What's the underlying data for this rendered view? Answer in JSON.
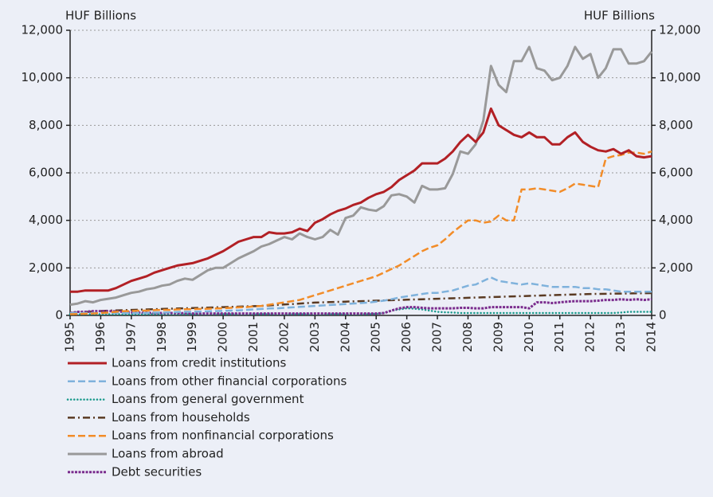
{
  "chart_data": {
    "type": "line",
    "ylabel": "HUF Billions",
    "y2label": "HUF Billions",
    "x": [
      1995,
      1995.25,
      1995.5,
      1995.75,
      1996,
      1996.25,
      1996.5,
      1996.75,
      1997,
      1997.25,
      1997.5,
      1997.75,
      1998,
      1998.25,
      1998.5,
      1998.75,
      1999,
      1999.25,
      1999.5,
      1999.75,
      2000,
      2000.25,
      2000.5,
      2000.75,
      2001,
      2001.25,
      2001.5,
      2001.75,
      2002,
      2002.25,
      2002.5,
      2002.75,
      2003,
      2003.25,
      2003.5,
      2003.75,
      2004,
      2004.25,
      2004.5,
      2004.75,
      2005,
      2005.25,
      2005.5,
      2005.75,
      2006,
      2006.25,
      2006.5,
      2006.75,
      2007,
      2007.25,
      2007.5,
      2007.75,
      2008,
      2008.25,
      2008.5,
      2008.75,
      2009,
      2009.25,
      2009.5,
      2009.75,
      2010,
      2010.25,
      2010.5,
      2010.75,
      2011,
      2011.25,
      2011.5,
      2011.75,
      2012,
      2012.25,
      2012.5,
      2012.75,
      2013,
      2013.25,
      2013.5,
      2013.75,
      2014
    ],
    "xlim": [
      1995,
      2014
    ],
    "xticks": [
      1995,
      1996,
      1997,
      1998,
      1999,
      2000,
      2001,
      2002,
      2003,
      2004,
      2005,
      2006,
      2007,
      2008,
      2009,
      2010,
      2011,
      2012,
      2013,
      2014
    ],
    "ylim": [
      0,
      12000
    ],
    "yticks": [
      0,
      {
        "value": 2000,
        "label": "2,000"
      },
      {
        "value": 4000,
        "label": "4,000"
      },
      {
        "value": 6000,
        "label": "6,000"
      },
      {
        "value": 8000,
        "label": "8,000"
      },
      {
        "value": 10000,
        "label": "10,000"
      },
      {
        "value": 12000,
        "label": "12,000"
      }
    ],
    "y2lim": [
      0,
      12000
    ],
    "y2ticks": [
      0,
      {
        "value": 2000,
        "label": "2,000"
      },
      {
        "value": 4000,
        "label": "4,000"
      },
      {
        "value": 6000,
        "label": "6,000"
      },
      {
        "value": 8000,
        "label": "8,000"
      },
      {
        "value": 10000,
        "label": "10,000"
      },
      {
        "value": 12000,
        "label": "12,000"
      }
    ],
    "grid": true,
    "legend": "bottom",
    "series": [
      {
        "name": "Loans from credit institutions",
        "color": "#b22025",
        "style": "solid",
        "values": [
          1000,
          1000,
          1050,
          1050,
          1050,
          1050,
          1150,
          1300,
          1450,
          1550,
          1650,
          1800,
          1900,
          2000,
          2100,
          2150,
          2200,
          2300,
          2400,
          2550,
          2700,
          2900,
          3100,
          3200,
          3300,
          3300,
          3500,
          3450,
          3450,
          3500,
          3650,
          3550,
          3900,
          4050,
          4250,
          4400,
          4500,
          4650,
          4750,
          4950,
          5100,
          5200,
          5400,
          5700,
          5900,
          6100,
          6400,
          6400,
          6400,
          6600,
          6900,
          7300,
          7600,
          7300,
          7700,
          8700,
          8000,
          7800,
          7600,
          7500,
          7700,
          7500,
          7500,
          7200,
          7200,
          7500,
          7700,
          7300,
          7100,
          6950,
          6900,
          7000,
          6800,
          6950,
          6700,
          6650,
          6700
        ]
      },
      {
        "name": "Loans from other financial corporations",
        "color": "#7fb2dc",
        "style": "dashed",
        "values": [
          100,
          100,
          100,
          100,
          100,
          100,
          100,
          100,
          100,
          100,
          100,
          120,
          120,
          130,
          140,
          150,
          150,
          160,
          170,
          180,
          190,
          200,
          210,
          230,
          250,
          270,
          290,
          300,
          320,
          340,
          360,
          380,
          400,
          420,
          440,
          460,
          480,
          500,
          520,
          540,
          580,
          620,
          680,
          750,
          800,
          850,
          900,
          950,
          950,
          1000,
          1050,
          1150,
          1250,
          1300,
          1450,
          1600,
          1450,
          1400,
          1350,
          1300,
          1350,
          1300,
          1250,
          1200,
          1200,
          1200,
          1200,
          1150,
          1150,
          1100,
          1100,
          1050,
          1000,
          1000,
          1000,
          1000,
          1000
        ]
      },
      {
        "name": "Loans from general government",
        "color": "#1a9a8c",
        "style": "dotted",
        "values": [
          50,
          50,
          50,
          50,
          50,
          50,
          50,
          50,
          50,
          50,
          50,
          50,
          50,
          50,
          50,
          50,
          50,
          50,
          50,
          50,
          50,
          50,
          50,
          50,
          50,
          50,
          50,
          50,
          50,
          50,
          50,
          50,
          50,
          50,
          50,
          50,
          50,
          50,
          50,
          50,
          60,
          100,
          200,
          250,
          300,
          280,
          250,
          200,
          150,
          130,
          120,
          100,
          100,
          100,
          100,
          100,
          100,
          100,
          100,
          100,
          100,
          100,
          100,
          100,
          100,
          100,
          100,
          100,
          100,
          100,
          100,
          100,
          120,
          150,
          150,
          150,
          150
        ]
      },
      {
        "name": "Loans from households",
        "color": "#5a3a22",
        "style": "dashdot",
        "values": [
          100,
          120,
          140,
          160,
          180,
          200,
          210,
          220,
          230,
          240,
          250,
          260,
          270,
          280,
          290,
          300,
          310,
          320,
          330,
          340,
          350,
          360,
          370,
          380,
          390,
          400,
          420,
          440,
          460,
          480,
          500,
          520,
          540,
          550,
          560,
          570,
          580,
          590,
          600,
          610,
          620,
          630,
          640,
          650,
          660,
          670,
          680,
          690,
          700,
          710,
          720,
          730,
          740,
          750,
          760,
          770,
          780,
          790,
          800,
          810,
          820,
          830,
          840,
          850,
          860,
          870,
          880,
          890,
          900,
          905,
          910,
          915,
          920,
          925,
          930,
          935,
          940
        ]
      },
      {
        "name": "Loans from nonfinancial corporations",
        "color": "#f28c28",
        "style": "dashed",
        "values": [
          50,
          60,
          70,
          80,
          100,
          120,
          150,
          180,
          180,
          200,
          200,
          220,
          230,
          230,
          250,
          260,
          260,
          270,
          280,
          290,
          300,
          320,
          340,
          350,
          380,
          400,
          450,
          500,
          550,
          600,
          650,
          750,
          850,
          950,
          1050,
          1150,
          1250,
          1350,
          1450,
          1550,
          1650,
          1800,
          1950,
          2100,
          2300,
          2500,
          2700,
          2850,
          2950,
          3200,
          3500,
          3750,
          4000,
          4000,
          3900,
          3950,
          4200,
          4000,
          4000,
          5300,
          5300,
          5350,
          5300,
          5250,
          5200,
          5350,
          5550,
          5500,
          5450,
          5400,
          6600,
          6700,
          6750,
          6850,
          6850,
          6800,
          6900
        ]
      },
      {
        "name": "Loans from abroad",
        "color": "#999999",
        "style": "solid",
        "values": [
          450,
          500,
          600,
          550,
          650,
          700,
          750,
          850,
          950,
          1000,
          1100,
          1150,
          1250,
          1300,
          1450,
          1550,
          1500,
          1700,
          1900,
          2000,
          2000,
          2200,
          2400,
          2550,
          2700,
          2900,
          3000,
          3150,
          3300,
          3200,
          3450,
          3300,
          3200,
          3300,
          3600,
          3400,
          4100,
          4200,
          4550,
          4450,
          4400,
          4600,
          5050,
          5100,
          5000,
          4750,
          5450,
          5300,
          5300,
          5350,
          5950,
          6900,
          6800,
          7200,
          8200,
          10500,
          9700,
          9400,
          10700,
          10700,
          11300,
          10400,
          10300,
          9900,
          10000,
          10500,
          11300,
          10800,
          11000,
          10000,
          10400,
          11200,
          11200,
          10600,
          10600,
          10700,
          11100
        ]
      },
      {
        "name": "Debt securities",
        "color": "#7b2d8e",
        "style": "dotted-markers",
        "values": [
          100,
          150,
          150,
          180,
          180,
          180,
          170,
          150,
          130,
          120,
          110,
          100,
          100,
          100,
          90,
          90,
          80,
          80,
          80,
          80,
          80,
          80,
          80,
          80,
          80,
          80,
          80,
          80,
          80,
          80,
          80,
          80,
          80,
          80,
          80,
          80,
          80,
          80,
          80,
          80,
          80,
          100,
          200,
          300,
          350,
          350,
          320,
          300,
          300,
          300,
          300,
          320,
          320,
          300,
          300,
          350,
          350,
          350,
          350,
          350,
          300,
          550,
          550,
          520,
          550,
          580,
          600,
          600,
          600,
          620,
          650,
          650,
          680,
          650,
          680,
          650,
          680
        ]
      }
    ]
  }
}
